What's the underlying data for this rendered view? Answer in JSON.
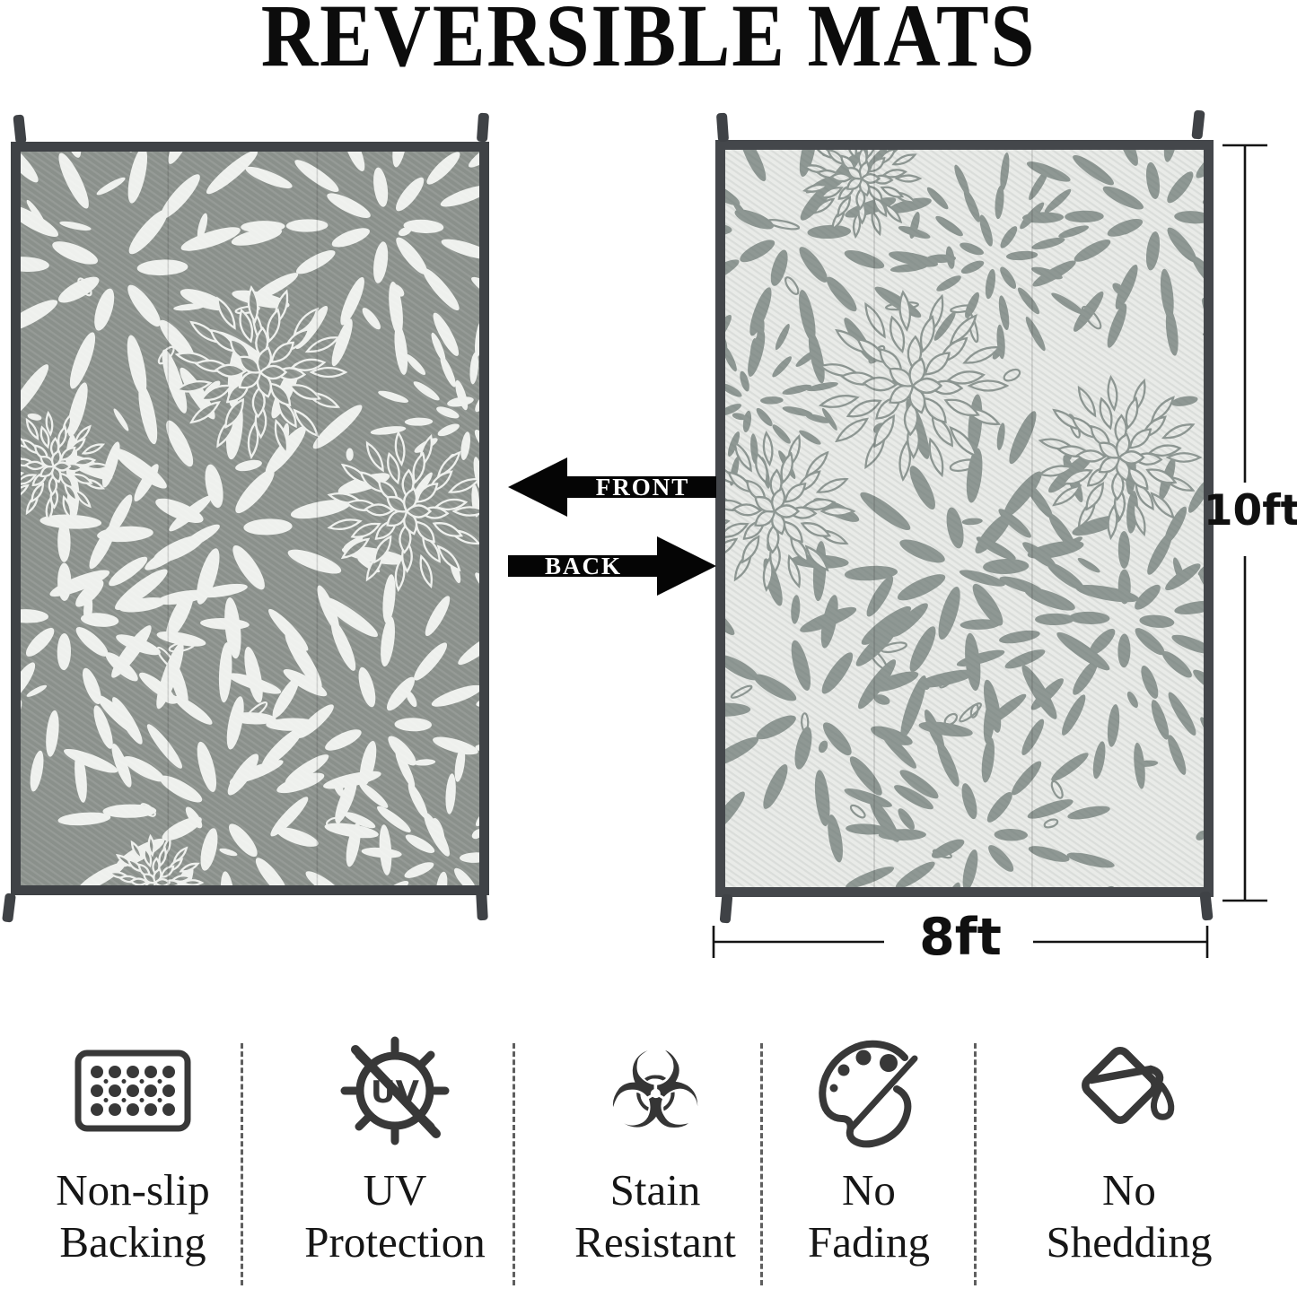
{
  "title": "REVERSIBLE MATS",
  "side_labels": {
    "front": "FRONT",
    "back": "BACK"
  },
  "dimensions": {
    "height_label": "10ft",
    "width_label": "8ft"
  },
  "mats": {
    "front": {
      "body": "#8a908b",
      "pattern": "#eef0ed",
      "trim": "#3f4246"
    },
    "back": {
      "body": "#e9ebe8",
      "pattern": "#8f9894",
      "trim": "#44474b"
    }
  },
  "arrow_color": "#050505",
  "icon_color": "#383838",
  "features": [
    {
      "name": "non-slip-backing",
      "line1": "Non-slip",
      "line2": "Backing"
    },
    {
      "name": "uv-protection",
      "line1": "UV",
      "line2": "Protection",
      "badge_text": "UV"
    },
    {
      "name": "stain-resistant",
      "line1": "Stain",
      "line2": "Resistant",
      "glyph": "☣"
    },
    {
      "name": "no-fading",
      "line1": "No",
      "line2": "Fading"
    },
    {
      "name": "no-shedding",
      "line1": "No",
      "line2": "Shedding"
    }
  ]
}
